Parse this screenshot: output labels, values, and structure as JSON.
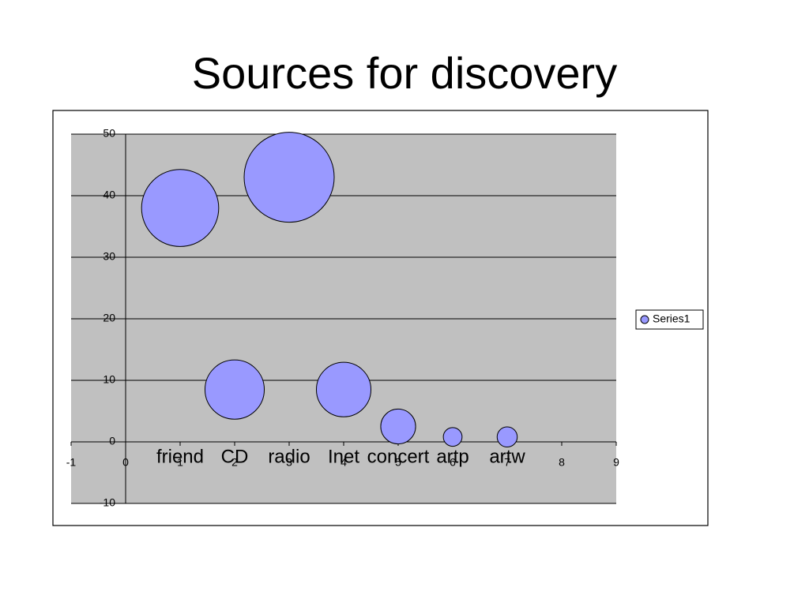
{
  "chart_data": {
    "type": "bubble",
    "title": "Sources for discovery",
    "point_labels": [
      "friend",
      "CD",
      "radio",
      "Inet",
      "concert",
      "artp",
      "artw"
    ],
    "series": [
      {
        "name": "Series1",
        "color": "#9999ff",
        "x": [
          1,
          2,
          3,
          4,
          5,
          6,
          7
        ],
        "values": [
          38,
          8.5,
          43,
          8.5,
          2.5,
          0.8,
          0.8
        ],
        "sizes": [
          22,
          13,
          30,
          11,
          4.5,
          1.3,
          1.5
        ]
      }
    ],
    "xlim": [
      -1,
      9
    ],
    "xticks": [
      -1,
      0,
      1,
      2,
      3,
      4,
      5,
      6,
      7,
      8,
      9
    ],
    "ylim": [
      -10,
      50
    ],
    "yticks": [
      -10,
      0,
      10,
      20,
      30,
      40,
      50
    ],
    "grid": true,
    "legend": "right"
  }
}
